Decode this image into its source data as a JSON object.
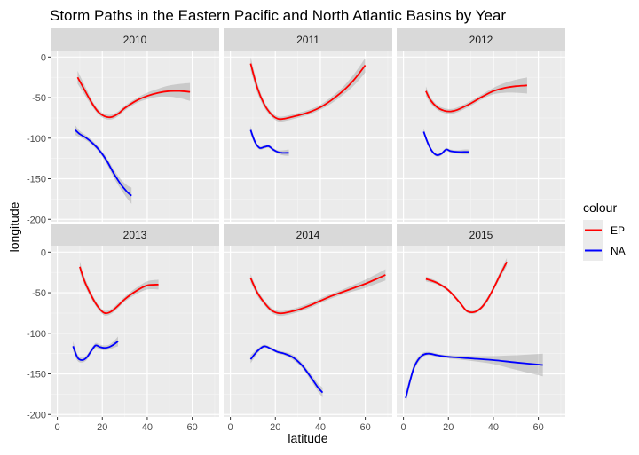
{
  "chart_data": {
    "type": "line",
    "title": "Storm Paths in the Eastern Pacific and North Atlantic Basins by Year",
    "xlabel": "latitude",
    "ylabel": "longitude",
    "xlim": [
      -3,
      72
    ],
    "ylim": [
      -203,
      8
    ],
    "x_ticks": [
      0,
      20,
      40,
      60
    ],
    "y_ticks": [
      0,
      -50,
      -100,
      -150,
      -200
    ],
    "grid": true,
    "facet_layout": "2 rows x 3 columns",
    "legend": {
      "title": "colour",
      "placement": "right",
      "entries": [
        {
          "label": "EP",
          "color": "#ff0000"
        },
        {
          "label": "NA",
          "color": "#0000ff"
        }
      ]
    },
    "facets": [
      {
        "label": "2010",
        "series": [
          {
            "name": "EP",
            "color": "#ff0000",
            "x": [
              9,
              12,
              15,
              18,
              21,
              24,
              27,
              30,
              35,
              40,
              45,
              50,
              55,
              59
            ],
            "y": [
              -25,
              -40,
              -55,
              -67,
              -73,
              -74,
              -70,
              -63,
              -54,
              -48,
              -44,
              -42,
              -42,
              -43
            ],
            "band": [
              8,
              6,
              4,
              3,
              3,
              3,
              3,
              3,
              3,
              4,
              5,
              7,
              9,
              11
            ]
          },
          {
            "name": "NA",
            "color": "#0000ff",
            "x": [
              8,
              10,
              13,
              16,
              19,
              22,
              25,
              28,
              31,
              33
            ],
            "y": [
              -90,
              -95,
              -100,
              -107,
              -116,
              -128,
              -143,
              -156,
              -166,
              -171
            ],
            "band": [
              6,
              4,
              3,
              3,
              3,
              4,
              5,
              6,
              8,
              10
            ]
          }
        ]
      },
      {
        "label": "2011",
        "series": [
          {
            "name": "EP",
            "color": "#ff0000",
            "x": [
              9,
              12,
              15,
              18,
              21,
              24,
              30,
              35,
              40,
              45,
              50,
              55,
              60
            ],
            "y": [
              -8,
              -38,
              -58,
              -70,
              -76,
              -76,
              -72,
              -68,
              -62,
              -53,
              -42,
              -28,
              -10
            ],
            "band": [
              8,
              6,
              4,
              3,
              3,
              3,
              3,
              3,
              3,
              4,
              5,
              7,
              9
            ]
          },
          {
            "name": "NA",
            "color": "#0000ff",
            "x": [
              9,
              11,
              13,
              15,
              17,
              19,
              21,
              23,
              26
            ],
            "y": [
              -90,
              -105,
              -112,
              -111,
              -110,
              -114,
              -117,
              -118,
              -118
            ],
            "band": [
              5,
              3,
              2,
              2,
              2,
              2,
              2,
              3,
              4
            ]
          }
        ]
      },
      {
        "label": "2012",
        "series": [
          {
            "name": "EP",
            "color": "#ff0000",
            "x": [
              10,
              12,
              15,
              18,
              21,
              24,
              30,
              35,
              40,
              45,
              50,
              55
            ],
            "y": [
              -42,
              -53,
              -62,
              -66,
              -67,
              -65,
              -57,
              -49,
              -42,
              -38,
              -36,
              -35
            ],
            "band": [
              6,
              4,
              3,
              3,
              3,
              3,
              3,
              3,
              4,
              6,
              8,
              10
            ]
          },
          {
            "name": "NA",
            "color": "#0000ff",
            "x": [
              9,
              11,
              13,
              15,
              17,
              19,
              21,
              24,
              27,
              29
            ],
            "y": [
              -92,
              -107,
              -117,
              -121,
              -119,
              -114,
              -116,
              -117,
              -117,
              -117
            ],
            "band": [
              4,
              3,
              2,
              2,
              2,
              2,
              2,
              2,
              3,
              3
            ]
          }
        ]
      },
      {
        "label": "2013",
        "series": [
          {
            "name": "EP",
            "color": "#ff0000",
            "x": [
              10,
              12,
              15,
              18,
              21,
              24,
              27,
              30,
              35,
              40,
              45
            ],
            "y": [
              -18,
              -35,
              -53,
              -67,
              -75,
              -73,
              -66,
              -58,
              -48,
              -41,
              -40
            ],
            "band": [
              7,
              5,
              4,
              3,
              3,
              3,
              3,
              3,
              4,
              5,
              6
            ]
          },
          {
            "name": "NA",
            "color": "#0000ff",
            "x": [
              7,
              9,
              11,
              13,
              15,
              17,
              19,
              21,
              23,
              25,
              27
            ],
            "y": [
              -116,
              -130,
              -133,
              -130,
              -122,
              -115,
              -117,
              -118,
              -117,
              -114,
              -110
            ],
            "band": [
              6,
              4,
              3,
              3,
              3,
              3,
              3,
              3,
              3,
              4,
              6
            ]
          }
        ]
      },
      {
        "label": "2014",
        "series": [
          {
            "name": "EP",
            "color": "#ff0000",
            "x": [
              9,
              12,
              15,
              18,
              21,
              24,
              30,
              35,
              40,
              45,
              50,
              55,
              60,
              65,
              69
            ],
            "y": [
              -32,
              -50,
              -62,
              -71,
              -75,
              -75,
              -71,
              -66,
              -60,
              -54,
              -49,
              -44,
              -39,
              -33,
              -28
            ],
            "band": [
              5,
              4,
              3,
              3,
              3,
              3,
              3,
              3,
              3,
              3,
              3,
              4,
              5,
              6,
              7
            ]
          },
          {
            "name": "NA",
            "color": "#0000ff",
            "x": [
              9,
              12,
              15,
              18,
              21,
              24,
              28,
              32,
              36,
              39,
              41
            ],
            "y": [
              -132,
              -122,
              -116,
              -119,
              -123,
              -125,
              -130,
              -140,
              -155,
              -167,
              -173
            ],
            "band": [
              5,
              3,
              2,
              2,
              2,
              2,
              3,
              3,
              4,
              5,
              6
            ]
          }
        ]
      },
      {
        "label": "2015",
        "series": [
          {
            "name": "EP",
            "color": "#ff0000",
            "x": [
              10,
              15,
              20,
              25,
              28,
              31,
              34,
              37,
              40,
              43,
              46
            ],
            "y": [
              -33,
              -38,
              -47,
              -62,
              -72,
              -74,
              -70,
              -60,
              -45,
              -28,
              -12
            ],
            "band": [
              3,
              2,
              2,
              2,
              2,
              2,
              2,
              3,
              3,
              4,
              5
            ]
          },
          {
            "name": "NA",
            "color": "#0000ff",
            "x": [
              1,
              3,
              5,
              8,
              11,
              15,
              20,
              30,
              40,
              50,
              62
            ],
            "y": [
              -180,
              -158,
              -140,
              -128,
              -125,
              -127,
              -129,
              -131,
              -133,
              -136,
              -139
            ],
            "band": [
              7,
              5,
              4,
              3,
              2,
              2,
              2,
              3,
              5,
              9,
              14
            ]
          }
        ]
      }
    ]
  }
}
